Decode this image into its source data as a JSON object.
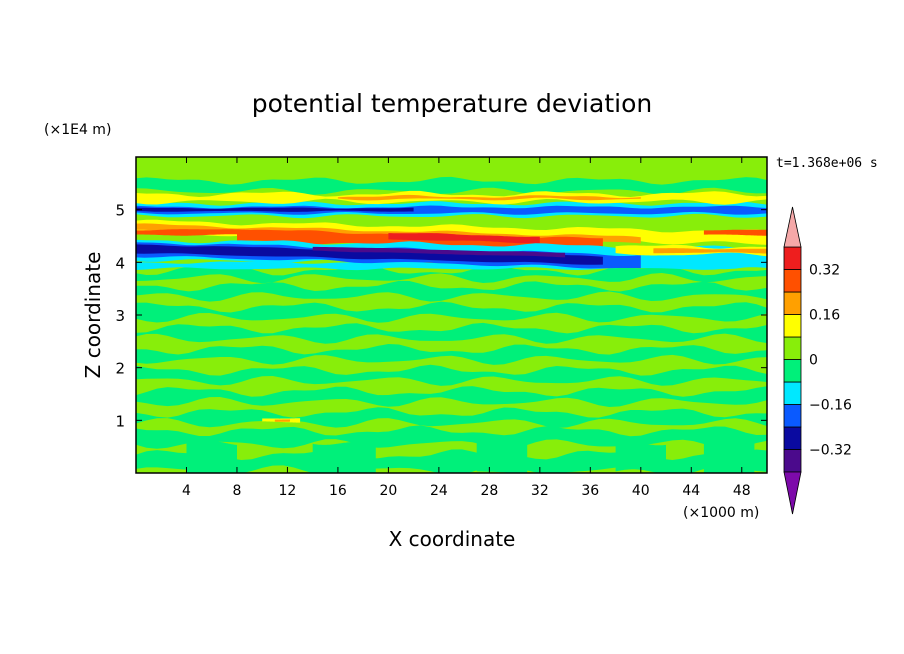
{
  "chart_data": {
    "type": "heatmap",
    "title": "potential temperature deviation",
    "xlabel": "X coordinate",
    "ylabel": "Z coordinate",
    "x_units": "(×1000 m)",
    "y_units": "(×1E4 m)",
    "time_label": "t=1.368e+06 s",
    "xlim": [
      0,
      50
    ],
    "ylim": [
      0,
      6
    ],
    "x_ticks": [
      4,
      8,
      12,
      16,
      20,
      24,
      28,
      32,
      36,
      40,
      44,
      48
    ],
    "x_tick_labels": [
      "4",
      "8",
      "12",
      "16",
      "20",
      "24",
      "28",
      "32",
      "36",
      "40",
      "44",
      "48"
    ],
    "y_ticks": [
      1,
      2,
      3,
      4,
      5
    ],
    "y_tick_labels": [
      "1",
      "2",
      "3",
      "4",
      "5"
    ],
    "colorbar": {
      "levels": [
        -0.4,
        -0.32,
        -0.24,
        -0.16,
        -0.08,
        0,
        0.08,
        0.16,
        0.24,
        0.32,
        0.4
      ],
      "tick_values": [
        -0.32,
        -0.16,
        0,
        0.16,
        0.32
      ],
      "tick_labels": [
        "−0.32",
        "−0.16",
        "0",
        "0.16",
        "0.32"
      ],
      "colors": [
        "#4b0a8c",
        "#0a0aa0",
        "#0a5aff",
        "#00e8ff",
        "#00f07a",
        "#88ee0a",
        "#ffff00",
        "#ffa000",
        "#ff5000",
        "#ee1e1e"
      ],
      "under_color": "#7d0aaa",
      "over_color": "#f5a8a8"
    },
    "features": [
      {
        "x": [
          0,
          50
        ],
        "z": [
          0,
          6
        ],
        "value": 0,
        "description": "background field near zero (green)"
      },
      {
        "x": [
          0,
          36
        ],
        "z": [
          4.1,
          4.5
        ],
        "value": -0.35,
        "description": "strong negative band (dark blue), sloping down with x"
      },
      {
        "x": [
          8,
          37
        ],
        "z": [
          4.3,
          4.6
        ],
        "value": 0.3,
        "description": "strong positive band (red) above negative band"
      },
      {
        "x": [
          0,
          50
        ],
        "z": [
          4.9,
          5.1
        ],
        "value": -0.2,
        "description": "negative layer near z=5"
      },
      {
        "x": [
          0,
          50
        ],
        "z": [
          5.1,
          5.3
        ],
        "value": 0.2,
        "description": "positive layer near z=5.2"
      }
    ]
  }
}
